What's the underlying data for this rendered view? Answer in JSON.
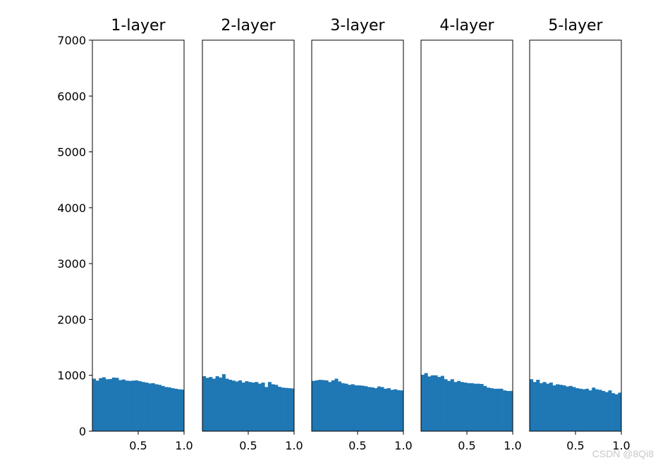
{
  "watermark": "CSDN @8Qi8",
  "chart_data": [
    {
      "type": "bar",
      "title": "1-layer",
      "xlim": [
        0.0,
        1.0
      ],
      "ylim": [
        0,
        7000
      ],
      "xticks": [
        "0.5",
        "1.0"
      ],
      "yticks": [
        "0",
        "1000",
        "2000",
        "3000",
        "4000",
        "5000",
        "6000",
        "7000"
      ],
      "bin_start": 0.0,
      "bin_end": 1.0,
      "values": [
        940,
        905,
        950,
        965,
        930,
        935,
        960,
        955,
        915,
        925,
        905,
        900,
        905,
        910,
        895,
        880,
        870,
        855,
        860,
        840,
        830,
        810,
        790,
        785,
        770,
        760,
        750,
        745
      ]
    },
    {
      "type": "bar",
      "title": "2-layer",
      "xlim": [
        0.0,
        1.0
      ],
      "ylim": [
        0,
        7000
      ],
      "xticks": [
        "0.5",
        "1.0"
      ],
      "bin_start": 0.0,
      "bin_end": 1.0,
      "values": [
        985,
        955,
        970,
        940,
        985,
        960,
        1020,
        940,
        920,
        905,
        890,
        910,
        870,
        895,
        880,
        870,
        880,
        850,
        870,
        790,
        880,
        840,
        830,
        795,
        780,
        775,
        770,
        765
      ]
    },
    {
      "type": "bar",
      "title": "3-layer",
      "xlim": [
        0.0,
        1.0
      ],
      "ylim": [
        0,
        7000
      ],
      "xticks": [
        "0.5",
        "1.0"
      ],
      "bin_start": 0.0,
      "bin_end": 1.0,
      "values": [
        900,
        910,
        920,
        915,
        910,
        880,
        910,
        940,
        890,
        860,
        850,
        830,
        840,
        820,
        820,
        815,
        805,
        790,
        785,
        770,
        800,
        790,
        760,
        770,
        740,
        750,
        735,
        730
      ]
    },
    {
      "type": "bar",
      "title": "4-layer",
      "xlim": [
        0.0,
        1.0
      ],
      "ylim": [
        0,
        7000
      ],
      "xticks": [
        "0.5",
        "1.0"
      ],
      "bin_start": 0.0,
      "bin_end": 1.0,
      "values": [
        1010,
        1040,
        980,
        1000,
        1000,
        970,
        990,
        930,
        900,
        930,
        880,
        900,
        880,
        870,
        860,
        860,
        850,
        850,
        845,
        810,
        780,
        770,
        760,
        760,
        760,
        730,
        720,
        720
      ]
    },
    {
      "type": "bar",
      "title": "5-layer",
      "xlim": [
        0.0,
        1.0
      ],
      "ylim": [
        0,
        7000
      ],
      "xticks": [
        "0.5",
        "1.0"
      ],
      "bin_start": 0.0,
      "bin_end": 1.0,
      "values": [
        930,
        880,
        920,
        860,
        880,
        850,
        870,
        820,
        840,
        830,
        820,
        800,
        810,
        790,
        770,
        760,
        750,
        760,
        730,
        780,
        750,
        740,
        720,
        700,
        730,
        680,
        660,
        690
      ]
    }
  ]
}
